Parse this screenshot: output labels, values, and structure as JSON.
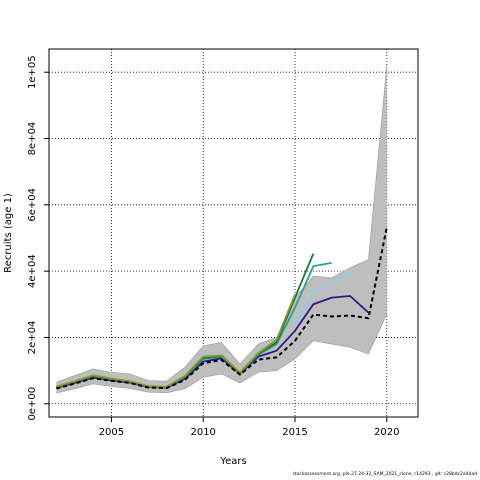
{
  "chart_data": {
    "type": "line",
    "title": "",
    "xlabel": "Years",
    "ylabel": "Recruits (age 1)",
    "xlim": [
      2001.6,
      2021.7
    ],
    "ylim": [
      -4000,
      107000
    ],
    "xticks": [
      2005,
      2010,
      2015,
      2020
    ],
    "yticks": [
      0,
      20000,
      40000,
      60000,
      80000,
      100000
    ],
    "ytick_labels": [
      "0e+00",
      "2e+04",
      "4e+04",
      "6e+04",
      "8e+04",
      "1e+05"
    ],
    "grid": true,
    "band": {
      "color": "#bebebe",
      "x": [
        2002,
        2003,
        2004,
        2005,
        2006,
        2007,
        2008,
        2009,
        2010,
        2011,
        2012,
        2013,
        2014,
        2015,
        2016,
        2017,
        2018,
        2019,
        2020
      ],
      "lower": [
        3200,
        4500,
        6000,
        5200,
        4600,
        3500,
        3300,
        4500,
        8000,
        9000,
        6200,
        9500,
        10000,
        13500,
        19000,
        18000,
        17000,
        15000,
        27000
      ],
      "upper": [
        6500,
        8500,
        10500,
        9500,
        9000,
        7000,
        6800,
        11000,
        17500,
        18500,
        12000,
        18000,
        20000,
        32000,
        38500,
        38000,
        41000,
        43500,
        102000
      ]
    },
    "series": [
      {
        "color": "#000000",
        "dashed": true,
        "x": [
          2002,
          2003,
          2004,
          2005,
          2006,
          2007,
          2008,
          2009,
          2010,
          2011,
          2012,
          2013,
          2014,
          2015,
          2016,
          2017,
          2018,
          2019,
          2020
        ],
        "values": [
          4600,
          6100,
          7700,
          6900,
          6300,
          4900,
          4700,
          7200,
          12200,
          13200,
          8800,
          13300,
          14000,
          19000,
          26900,
          26300,
          26600,
          25800,
          53200
        ]
      },
      {
        "color": "#2e1a8c",
        "x": [
          2002,
          2003,
          2004,
          2005,
          2006,
          2007,
          2008,
          2009,
          2010,
          2011,
          2012,
          2013,
          2014,
          2015,
          2016,
          2017,
          2018,
          2019
        ],
        "values": [
          4800,
          6300,
          7900,
          7100,
          6400,
          5000,
          4800,
          7500,
          12700,
          13700,
          9000,
          14200,
          16000,
          22000,
          30000,
          32000,
          32500,
          27500
        ]
      },
      {
        "color": "#87ceeb",
        "x": [
          2015,
          2016,
          2017,
          2018
        ],
        "values": [
          24000,
          33500,
          36500,
          39500
        ]
      },
      {
        "color": "#2aa198",
        "x": [
          2002,
          2003,
          2004,
          2005,
          2006,
          2007,
          2008,
          2009,
          2010,
          2011,
          2012,
          2013,
          2014,
          2015,
          2016,
          2017
        ],
        "values": [
          5000,
          6600,
          8300,
          7400,
          6600,
          5100,
          4900,
          8000,
          13500,
          14200,
          9200,
          14800,
          18000,
          29000,
          41500,
          42500
        ]
      },
      {
        "color": "#1b7837",
        "x": [
          2002,
          2003,
          2004,
          2005,
          2006,
          2007,
          2008,
          2009,
          2010,
          2011,
          2012,
          2013,
          2014,
          2015,
          2016
        ],
        "values": [
          5100,
          6700,
          8400,
          7500,
          6700,
          5200,
          5000,
          8200,
          13800,
          14400,
          9300,
          15000,
          18500,
          32000,
          45300
        ]
      },
      {
        "color": "#8c9a2c",
        "x": [
          2002,
          2003,
          2004,
          2005,
          2006,
          2007,
          2008,
          2009,
          2010,
          2011,
          2012,
          2013,
          2014,
          2015
        ],
        "values": [
          5200,
          6800,
          8600,
          7600,
          6800,
          5300,
          5100,
          8400,
          14200,
          14600,
          9400,
          15300,
          19300,
          33000
        ]
      }
    ]
  },
  "footer": "stockassessment.org,  ple.27.24-32_SAM_2021_clone,  r14293 ,  git:  c28bdc2a44ad"
}
